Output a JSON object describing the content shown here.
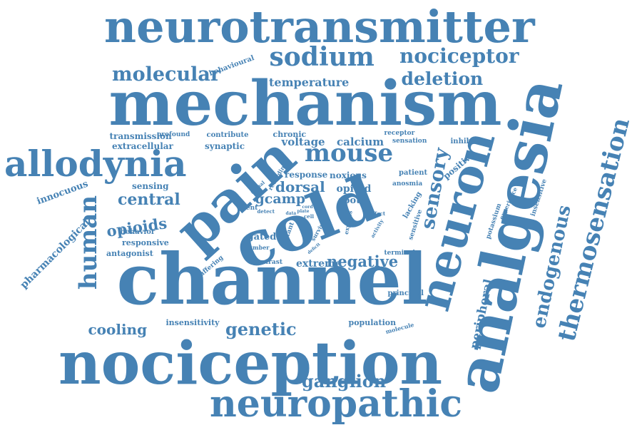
{
  "cloud": {
    "color": "#4682b4",
    "background": "#ffffff",
    "words": [
      "neurotransmitter",
      "mechanism",
      "channel",
      "nociception",
      "cold",
      "pain",
      "analgesia",
      "neuron",
      "neuropathic",
      "allodynia",
      "thermosensation",
      "sodium",
      "nociceptor",
      "molecular",
      "deletion",
      "mouse",
      "sensory",
      "human",
      "endogenous",
      "ganglion",
      "genetic",
      "central",
      "cooling",
      "opioids",
      "negative",
      "temperature",
      "peripheral",
      "dorsal",
      "gcamp",
      "opioid",
      "voltage",
      "calcium",
      "extreme",
      "transmission",
      "extracellular",
      "synaptic",
      "chronic",
      "contribute",
      "profound",
      "behavioural",
      "receptor",
      "sensation",
      "inhibition",
      "positive",
      "response",
      "noxious",
      "patient",
      "anosmia",
      "root",
      "sensing",
      "recording",
      "spinal",
      "silent",
      "detect",
      "innocuous",
      "pharmacological",
      "behavior",
      "responsive",
      "antagonist",
      "gated",
      "mutant",
      "survival",
      "number",
      "suffering",
      "contrast",
      "insensitivity",
      "population",
      "molecule",
      "principal",
      "terminal",
      "potassium",
      "experience",
      "insensitive",
      "lacking",
      "sensitive",
      "express",
      "activity",
      "effect",
      "data",
      "cord",
      "plate",
      "cell",
      "deficit"
    ]
  }
}
